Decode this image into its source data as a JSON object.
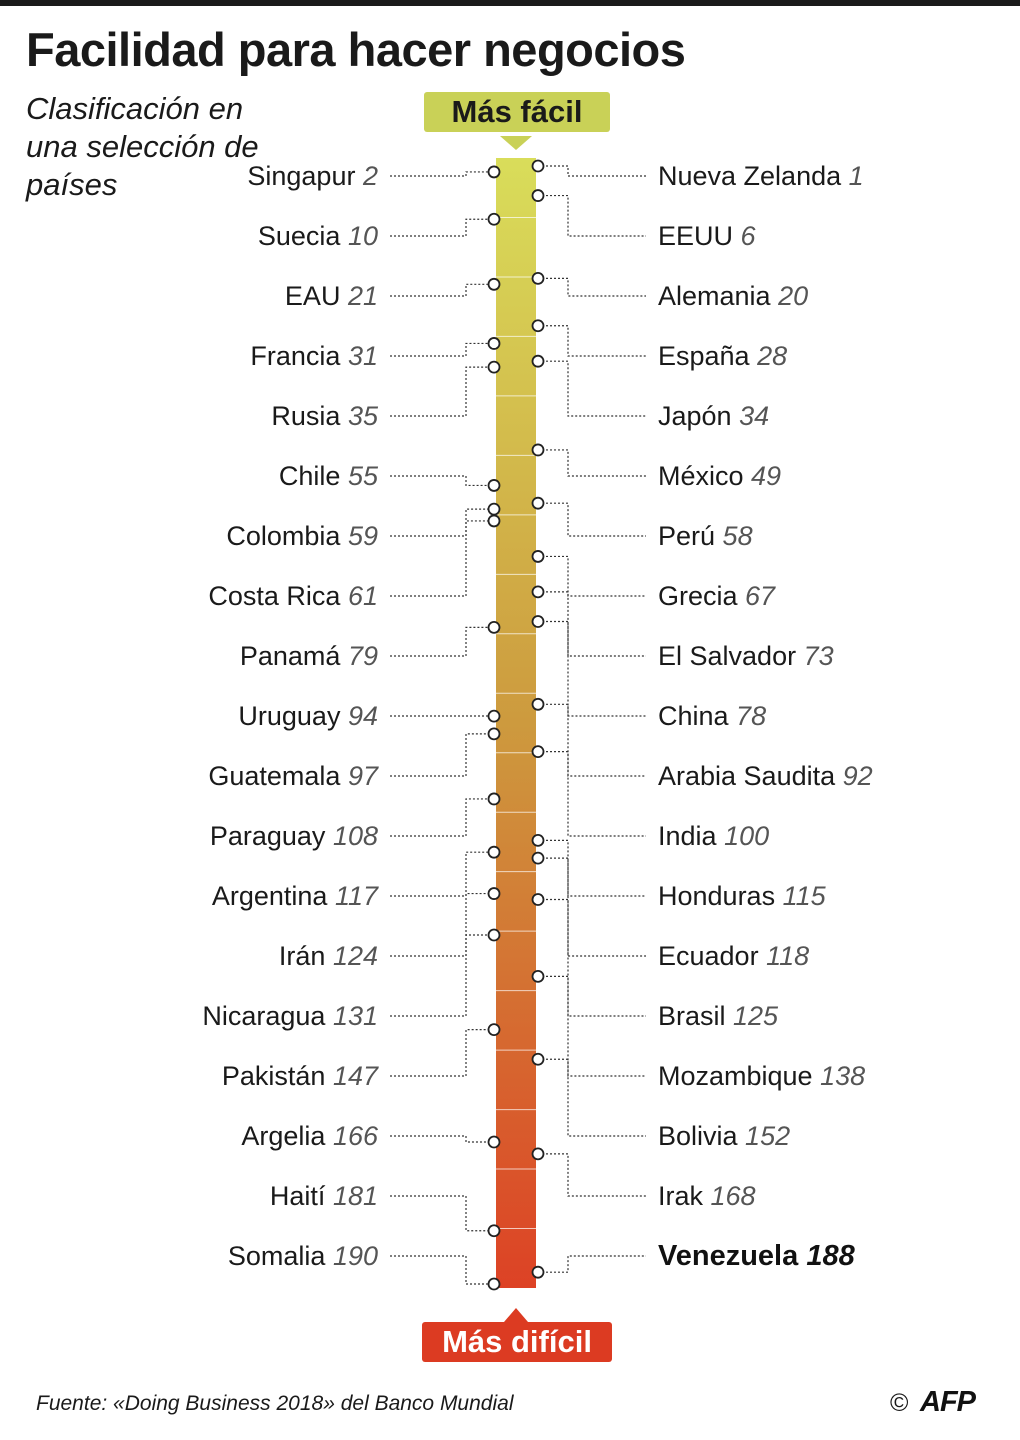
{
  "header": {
    "title": "Facilidad para hacer negocios",
    "subtitle": "Clasificación en una selección de países"
  },
  "scale": {
    "top_label": "Más fácil",
    "bottom_label": "Más difícil"
  },
  "colors": {
    "easy": "#d9dd5a",
    "hard": "#dd4225",
    "top_tag": "#c9d157",
    "bottom_tag": "#dc3b22"
  },
  "chart_data": {
    "type": "ranking_scale",
    "title": "Facilidad para hacer negocios",
    "subtitle": "Clasificación en una selección de países",
    "rank_range": [
      1,
      190
    ],
    "left": [
      {
        "country": "Singapur",
        "rank": 2
      },
      {
        "country": "Suecia",
        "rank": 10
      },
      {
        "country": "EAU",
        "rank": 21
      },
      {
        "country": "Francia",
        "rank": 31
      },
      {
        "country": "Rusia",
        "rank": 35
      },
      {
        "country": "Chile",
        "rank": 55
      },
      {
        "country": "Colombia",
        "rank": 59
      },
      {
        "country": "Costa Rica",
        "rank": 61
      },
      {
        "country": "Panamá",
        "rank": 79
      },
      {
        "country": "Uruguay",
        "rank": 94
      },
      {
        "country": "Guatemala",
        "rank": 97
      },
      {
        "country": "Paraguay",
        "rank": 108
      },
      {
        "country": "Argentina",
        "rank": 117
      },
      {
        "country": "Irán",
        "rank": 124
      },
      {
        "country": "Nicaragua",
        "rank": 131
      },
      {
        "country": "Pakistán",
        "rank": 147
      },
      {
        "country": "Argelia",
        "rank": 166
      },
      {
        "country": "Haití",
        "rank": 181
      },
      {
        "country": "Somalia",
        "rank": 190
      }
    ],
    "right": [
      {
        "country": "Nueva Zelanda",
        "rank": 1
      },
      {
        "country": "EEUU",
        "rank": 6
      },
      {
        "country": "Alemania",
        "rank": 20
      },
      {
        "country": "España",
        "rank": 28
      },
      {
        "country": "Japón",
        "rank": 34
      },
      {
        "country": "México",
        "rank": 49
      },
      {
        "country": "Perú",
        "rank": 58
      },
      {
        "country": "Grecia",
        "rank": 67
      },
      {
        "country": "El Salvador",
        "rank": 73
      },
      {
        "country": "China",
        "rank": 78
      },
      {
        "country": "Arabia Saudita",
        "rank": 92
      },
      {
        "country": "India",
        "rank": 100
      },
      {
        "country": "Honduras",
        "rank": 115
      },
      {
        "country": "Ecuador",
        "rank": 118
      },
      {
        "country": "Brasil",
        "rank": 125
      },
      {
        "country": "Mozambique",
        "rank": 138
      },
      {
        "country": "Bolivia",
        "rank": 152
      },
      {
        "country": "Irak",
        "rank": 168
      },
      {
        "country": "Venezuela",
        "rank": 188,
        "highlight": true
      }
    ]
  },
  "footer": {
    "source": "Fuente: «Doing Business 2018» del Banco Mundial",
    "copyright": "©",
    "logo": "AFP"
  }
}
